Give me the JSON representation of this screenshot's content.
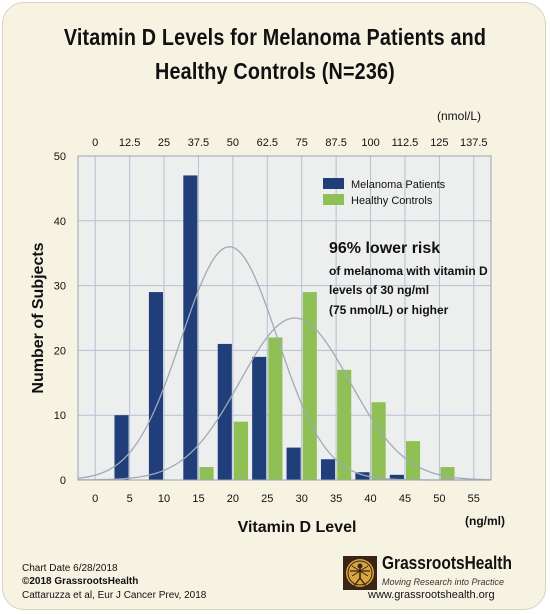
{
  "header": {
    "title_line1": "Vitamin D Levels for Melanoma Patients and",
    "title_line2": "Healthy Controls (N=236)"
  },
  "chart_data": {
    "type": "bar",
    "title": "Vitamin D Levels for Melanoma Patients and Healthy Controls (N=236)",
    "xlabel": "Vitamin D Level",
    "ylabel": "Number of Subjects",
    "x_unit": "(ng/ml)",
    "top_unit": "(nmol/L)",
    "x_ticks": [
      0,
      5,
      10,
      15,
      20,
      25,
      30,
      35,
      40,
      45,
      50,
      55
    ],
    "top_ticks": [
      "0",
      "12.5",
      "25",
      "37.5",
      "50",
      "62.5",
      "75",
      "87.5",
      "100",
      "112.5",
      "125",
      "137.5"
    ],
    "y_ticks": [
      0,
      10,
      20,
      30,
      40,
      50
    ],
    "xlim": [
      -2.5,
      57.5
    ],
    "ylim": [
      0,
      50
    ],
    "bin_width": 5,
    "series": [
      {
        "name": "Melanoma Patients",
        "color": "#1f3e7a",
        "x": [
          5,
          10,
          15,
          20,
          25,
          30,
          35,
          40,
          45
        ],
        "values": [
          10,
          29,
          47,
          21,
          19,
          5,
          3.2,
          1.2,
          0.8
        ]
      },
      {
        "name": "Healthy Controls",
        "color": "#8fc056",
        "x": [
          15,
          20,
          25,
          30,
          35,
          40,
          45,
          50
        ],
        "values": [
          2,
          9,
          22,
          29,
          17,
          12,
          6,
          2
        ]
      }
    ],
    "fit_curves": [
      {
        "series": "Melanoma Patients",
        "shape": "normal",
        "mean": 19.5,
        "sd": 7,
        "peak": 36
      },
      {
        "series": "Healthy Controls",
        "shape": "normal",
        "mean": 29,
        "sd": 8,
        "peak": 25
      }
    ],
    "annotation": {
      "headline": "96% lower risk",
      "line1": "of melanoma with vitamin D",
      "line2": "levels of 30 ng/ml",
      "line3": "(75 nmol/L) or higher"
    },
    "grid": true,
    "legend_position": "top-right"
  },
  "footer": {
    "chart_date": "Chart Date 6/28/2018",
    "copyright": "©2018 GrassrootsHealth",
    "citation": "Cattaruzza et al, Eur J Cancer Prev, 2018"
  },
  "brand": {
    "name": "GrassrootsHealth",
    "tagline": "Moving Research into Practice",
    "url": "www.grassrootshealth.org"
  }
}
